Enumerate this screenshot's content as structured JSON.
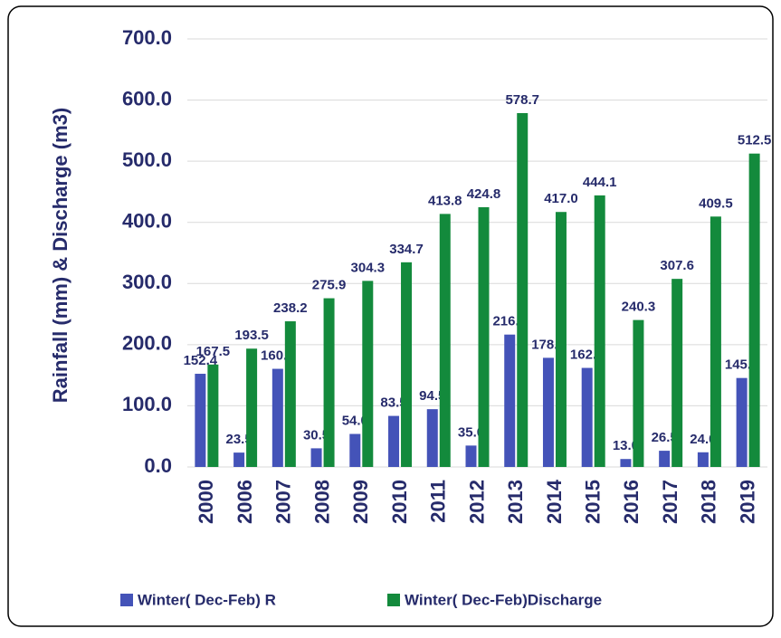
{
  "chart_data": {
    "type": "bar",
    "y_label": "Rainfall (mm) & Discharge (m3)",
    "categories": [
      "2000",
      "2006",
      "2007",
      "2008",
      "2009",
      "2010",
      "2011",
      "2012",
      "2013",
      "2014",
      "2015",
      "2016",
      "2017",
      "2018",
      "2019"
    ],
    "series": [
      {
        "name": "Winter( Dec-Feb) R",
        "color": "#4453b8",
        "values": [
          152.4,
          23.5,
          160.5,
          30.5,
          54.0,
          83.5,
          94.5,
          35.0,
          216.5,
          178.5,
          162.0,
          13.0,
          26.5,
          24.0,
          145.5
        ],
        "value_labels": [
          "152.4",
          "23.5",
          "160.5",
          "30.5",
          "54.0",
          "83.5",
          "94.5",
          "35.0",
          "216.5",
          "178.5",
          "162.0",
          "13.0",
          "26.5",
          "24.0",
          "145.5"
        ]
      },
      {
        "name": "Winter( Dec-Feb)Discharge",
        "color": "#138a3c",
        "values": [
          167.5,
          193.5,
          238.2,
          275.9,
          304.3,
          334.7,
          413.8,
          424.8,
          578.7,
          417.0,
          444.1,
          240.3,
          307.6,
          409.5,
          512.5
        ],
        "value_labels": [
          "167.5",
          "193.5",
          "238.2",
          "275.9",
          "304.3",
          "334.7",
          "413.8",
          "424.8",
          "578.7",
          "417.0",
          "444.1",
          "240.3",
          "307.6",
          "409.5",
          "512.5"
        ]
      }
    ],
    "ylim": [
      0,
      700
    ],
    "yticks": [
      {
        "value": 0,
        "label": "0.0"
      },
      {
        "value": 100,
        "label": "100.0"
      },
      {
        "value": 200,
        "label": "200.0"
      },
      {
        "value": 300,
        "label": "300.0"
      },
      {
        "value": 400,
        "label": "400.0"
      },
      {
        "value": 500,
        "label": "500.0"
      },
      {
        "value": 600,
        "label": "600.0"
      },
      {
        "value": 700,
        "label": "700.0"
      }
    ],
    "grid": true,
    "legend": "bottom"
  }
}
